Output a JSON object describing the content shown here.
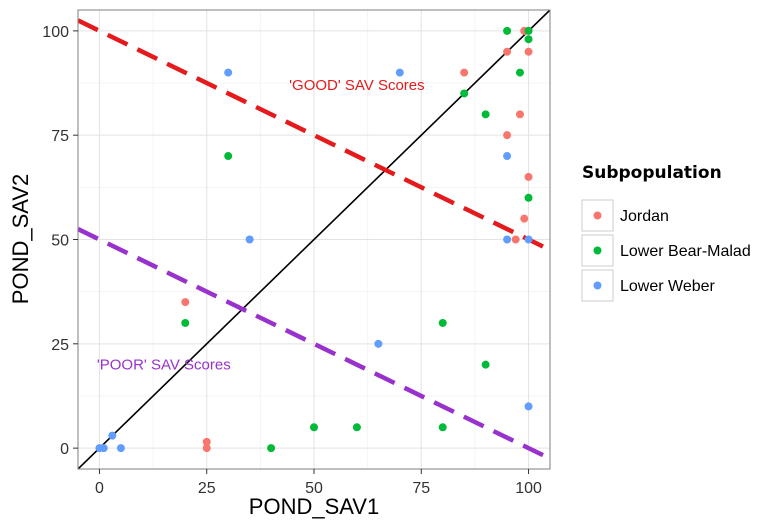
{
  "chart_data": {
    "type": "scatter",
    "xlabel": "POND_SAV1",
    "ylabel": "POND_SAV2",
    "xlim": [
      -5,
      105
    ],
    "ylim": [
      -5,
      105
    ],
    "x_ticks": [
      0,
      25,
      50,
      75,
      100
    ],
    "y_ticks": [
      0,
      25,
      50,
      75,
      100
    ],
    "grid": true,
    "legend": {
      "title": "Subpopulation",
      "position": "right"
    },
    "series": [
      {
        "name": "Jordan",
        "color": "#F8766D",
        "points": [
          [
            20,
            35
          ],
          [
            25,
            1.5
          ],
          [
            25,
            0
          ],
          [
            85,
            90
          ],
          [
            95,
            95
          ],
          [
            95,
            75
          ],
          [
            97,
            50
          ],
          [
            98,
            80
          ],
          [
            99,
            100
          ],
          [
            100,
            95
          ],
          [
            99,
            55
          ],
          [
            100,
            65
          ]
        ]
      },
      {
        "name": "Lower Bear-Malad",
        "color": "#00BA38",
        "points": [
          [
            20,
            30
          ],
          [
            30,
            70
          ],
          [
            40,
            0
          ],
          [
            50,
            5
          ],
          [
            60,
            5
          ],
          [
            80,
            30
          ],
          [
            80,
            5
          ],
          [
            85,
            85
          ],
          [
            90,
            80
          ],
          [
            90,
            20
          ],
          [
            95,
            100
          ],
          [
            98,
            90
          ],
          [
            100,
            100
          ],
          [
            100,
            98
          ],
          [
            100,
            60
          ]
        ]
      },
      {
        "name": "Lower Weber",
        "color": "#619CFF",
        "points": [
          [
            0,
            0
          ],
          [
            1,
            0
          ],
          [
            3,
            3
          ],
          [
            5,
            0
          ],
          [
            30,
            90
          ],
          [
            35,
            50
          ],
          [
            65,
            25
          ],
          [
            70,
            90
          ],
          [
            95,
            70
          ],
          [
            95,
            50
          ],
          [
            100,
            50
          ],
          [
            100,
            10
          ]
        ]
      }
    ],
    "reference_lines": [
      {
        "name": "identity",
        "from": [
          -5,
          -5
        ],
        "to": [
          105,
          105
        ],
        "color": "#000000",
        "dash": false
      },
      {
        "name": "good",
        "from": [
          -5,
          102.5
        ],
        "to": [
          105,
          47.5
        ],
        "color": "#E41A1C",
        "dash": true
      },
      {
        "name": "poor",
        "from": [
          -5,
          52.5
        ],
        "to": [
          105,
          -2.5
        ],
        "color": "#9932CC",
        "dash": true
      }
    ],
    "annotations": [
      {
        "text": "'GOOD' SAV Scores",
        "x": 60,
        "y": 87,
        "color": "#E41A1C"
      },
      {
        "text": "'POOR' SAV Scores",
        "x": 15,
        "y": 20,
        "color": "#9932CC"
      }
    ]
  }
}
